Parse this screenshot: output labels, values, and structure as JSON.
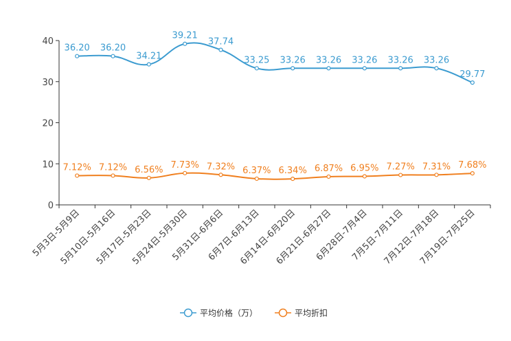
{
  "chart_data": {
    "type": "line",
    "categories": [
      "5月3日-5月9日",
      "5月10日-5月16日",
      "5月17日-5月23日",
      "5月24日-5月30日",
      "5月31日-6月6日",
      "6月7日-6月13日",
      "6月14日-6月20日",
      "6月21日-6月27日",
      "6月28日-7月4日",
      "7月5日-7月11日",
      "7月12日-7月18日",
      "7月19日-7月25日"
    ],
    "ylim": [
      0,
      40
    ],
    "yticks": [
      0,
      10,
      20,
      30,
      40
    ],
    "legend_position": "bottom",
    "series": [
      {
        "name": "平均价格（万）",
        "color": "#3b9bd0",
        "values": [
          36.2,
          36.2,
          34.21,
          39.21,
          37.74,
          33.25,
          33.26,
          33.26,
          33.26,
          33.26,
          33.26,
          29.77
        ],
        "labels": [
          "36.20",
          "36.20",
          "34.21",
          "39.21",
          "37.74",
          "33.25",
          "33.26",
          "33.26",
          "33.26",
          "33.26",
          "33.26",
          "29.77"
        ]
      },
      {
        "name": "平均折扣",
        "color": "#f07f1e",
        "values": [
          7.12,
          7.12,
          6.56,
          7.73,
          7.32,
          6.37,
          6.34,
          6.87,
          6.95,
          7.27,
          7.31,
          7.68
        ],
        "labels": [
          "7.12%",
          "7.12%",
          "6.56%",
          "7.73%",
          "7.32%",
          "6.37%",
          "6.34%",
          "6.87%",
          "6.95%",
          "7.27%",
          "7.31%",
          "7.68%"
        ]
      }
    ]
  }
}
